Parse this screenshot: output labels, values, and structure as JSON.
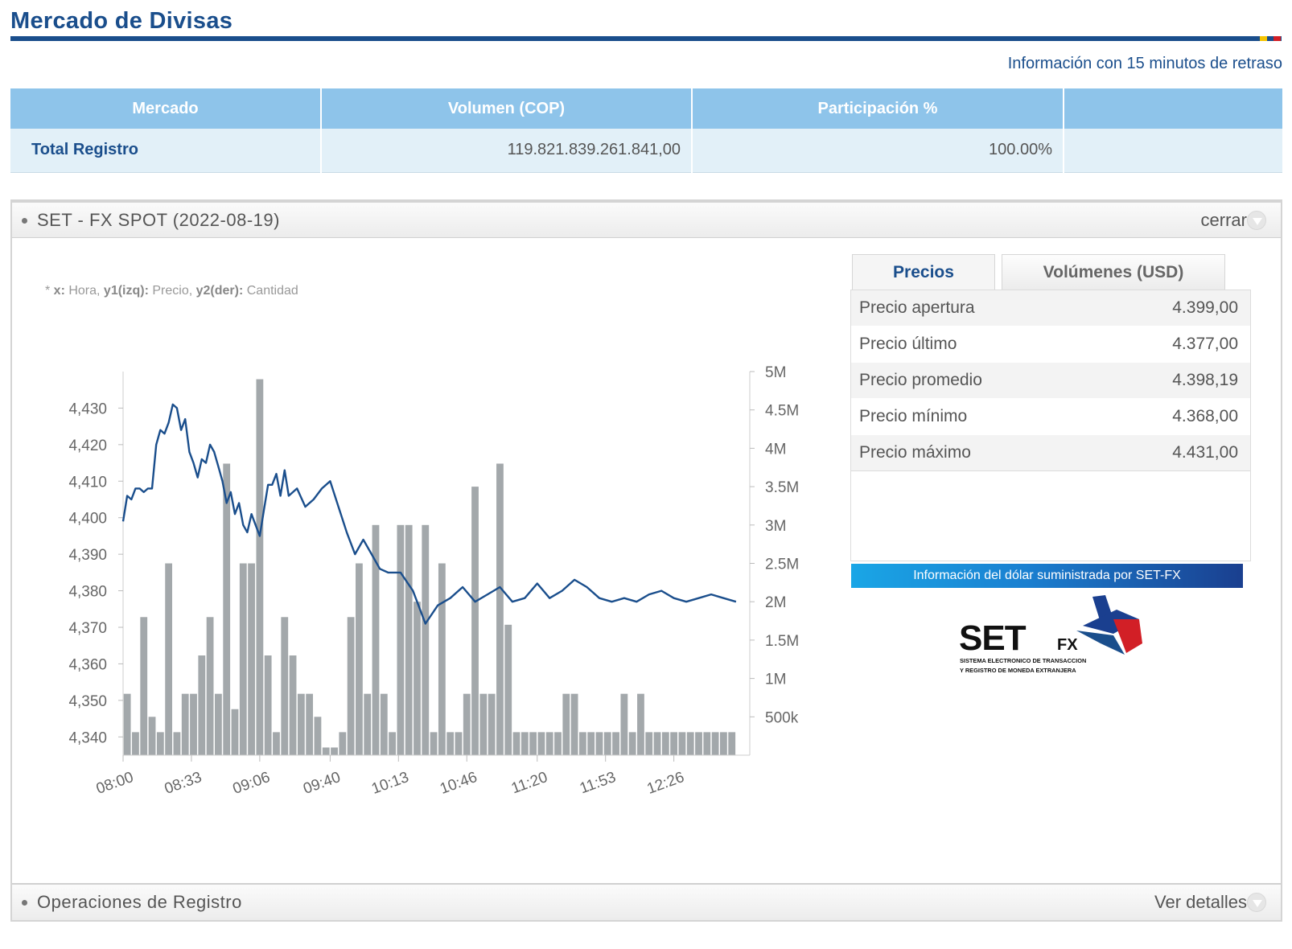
{
  "header": {
    "title": "Mercado de Divisas",
    "delay_note": "Información con 15 minutos de retraso",
    "flag_colors": [
      "#f5c400",
      "#1a4e8c",
      "#d21f26"
    ]
  },
  "market_table": {
    "columns": [
      "Mercado",
      "Volumen (COP)",
      "Participación %",
      ""
    ],
    "rows": [
      {
        "market": "Total Registro",
        "volume": "119.821.839.261.841,00",
        "share": "100.00%",
        "extra": ""
      }
    ]
  },
  "spot_panel": {
    "title": "SET - FX SPOT (2022-08-19)",
    "close_label": "cerrar",
    "chart_note": {
      "x_key": "x:",
      "x_val": " Hora, ",
      "y1_key": "y1(izq):",
      "y1_val": " Precio, ",
      "y2_key": "y2(der):",
      "y2_val": " Cantidad",
      "prefix": "* "
    },
    "tabs": [
      "Precios",
      "Volúmenes (USD)"
    ],
    "prices": [
      {
        "label": "Precio apertura",
        "value": "4.399,00"
      },
      {
        "label": "Precio último",
        "value": "4.377,00"
      },
      {
        "label": "Precio promedio",
        "value": "4.398,19"
      },
      {
        "label": "Precio mínimo",
        "value": "4.368,00"
      },
      {
        "label": "Precio máximo",
        "value": "4.431,00"
      }
    ],
    "banner": "Información del dólar suministrada por SET-FX",
    "logo": {
      "text": "SET",
      "sub": "FX",
      "line1": "SISTEMA ELECTRONICO DE TRANSACCION",
      "line2": "Y REGISTRO DE MONEDA EXTRANJERA"
    }
  },
  "registry_panel": {
    "title": "Operaciones de Registro",
    "details_label": "Ver detalles"
  },
  "chart_data": {
    "type": "line",
    "x_ticks": [
      "08:00",
      "08:33",
      "09:06",
      "09:40",
      "10:13",
      "10:46",
      "11:20",
      "11:53",
      "12:26"
    ],
    "y_left_ticks": [
      "4,430",
      "4,420",
      "4,410",
      "4,400",
      "4,390",
      "4,380",
      "4,370",
      "4,360",
      "4,350",
      "4,340"
    ],
    "y_right_ticks": [
      "5M",
      "4.5M",
      "4M",
      "3.5M",
      "3M",
      "2.5M",
      "2M",
      "1.5M",
      "1M",
      "500k"
    ],
    "ylim_left": [
      4335,
      4440
    ],
    "ylim_right": [
      0,
      5000000
    ],
    "x_range_minutes": [
      0,
      298
    ],
    "colors": {
      "line": "#1a4e8c",
      "bars": "#a3a8ab"
    },
    "series": [
      {
        "axis": "left",
        "type": "line",
        "x_minutes": [
          0,
          2,
          4,
          6,
          8,
          10,
          12,
          14,
          16,
          18,
          20,
          22,
          24,
          26,
          28,
          30,
          32,
          34,
          36,
          38,
          40,
          42,
          44,
          46,
          48,
          50,
          52,
          54,
          56,
          58,
          60,
          62,
          64,
          66,
          68,
          70,
          72,
          74,
          76,
          78,
          80,
          84,
          88,
          92,
          96,
          100,
          104,
          108,
          112,
          116,
          120,
          124,
          128,
          134,
          140,
          146,
          152,
          158,
          164,
          170,
          176,
          182,
          188,
          194,
          200,
          206,
          212,
          218,
          224,
          230,
          236,
          242,
          248,
          254,
          260,
          266,
          272,
          278,
          284,
          290,
          296
        ],
        "y": [
          4399,
          4406,
          4405,
          4408,
          4408,
          4407,
          4408,
          4408,
          4420,
          4424,
          4423,
          4426,
          4431,
          4430,
          4424,
          4427,
          4418,
          4415,
          4411,
          4416,
          4415,
          4420,
          4418,
          4414,
          4410,
          4404,
          4407,
          4401,
          4404,
          4398,
          4396,
          4401,
          4398,
          4395,
          4402,
          4409,
          4409,
          4412,
          4406,
          4413,
          4406,
          4408,
          4403,
          4405,
          4408,
          4410,
          4403,
          4396,
          4390,
          4394,
          4390,
          4386,
          4385,
          4385,
          4380,
          4371,
          4376,
          4378,
          4381,
          4377,
          4379,
          4381,
          4377,
          4378,
          4382,
          4378,
          4380,
          4383,
          4381,
          4378,
          4377,
          4378,
          4377,
          4379,
          4380,
          4378,
          4377,
          4378,
          4379,
          4378,
          4377
        ]
      },
      {
        "axis": "right",
        "type": "bar",
        "x_minutes": [
          2,
          6,
          10,
          14,
          18,
          22,
          26,
          30,
          34,
          38,
          42,
          46,
          50,
          54,
          58,
          62,
          66,
          70,
          74,
          78,
          82,
          86,
          90,
          94,
          98,
          102,
          106,
          110,
          114,
          118,
          122,
          126,
          130,
          134,
          138,
          142,
          146,
          150,
          154,
          158,
          162,
          166,
          170,
          174,
          178,
          182,
          186,
          190,
          194,
          198,
          202,
          206,
          210,
          214,
          218,
          222,
          226,
          230,
          234,
          238,
          242,
          246,
          250,
          254,
          258,
          262,
          266,
          270,
          274,
          278,
          282,
          286,
          290,
          294
        ],
        "values": [
          800000,
          300000,
          1800000,
          500000,
          300000,
          2500000,
          300000,
          800000,
          800000,
          1300000,
          1800000,
          800000,
          3800000,
          600000,
          2500000,
          2500000,
          4900000,
          1300000,
          300000,
          1800000,
          1300000,
          800000,
          800000,
          500000,
          100000,
          100000,
          300000,
          1800000,
          2500000,
          800000,
          3000000,
          800000,
          300000,
          3000000,
          3000000,
          2000000,
          3000000,
          300000,
          2500000,
          300000,
          300000,
          800000,
          3500000,
          800000,
          800000,
          3800000,
          1700000,
          300000,
          300000,
          300000,
          300000,
          300000,
          300000,
          800000,
          800000,
          300000,
          300000,
          300000,
          300000,
          300000,
          800000,
          300000,
          800000,
          300000,
          300000,
          300000,
          300000,
          300000,
          300000,
          300000,
          300000,
          300000,
          300000,
          300000
        ]
      }
    ]
  }
}
